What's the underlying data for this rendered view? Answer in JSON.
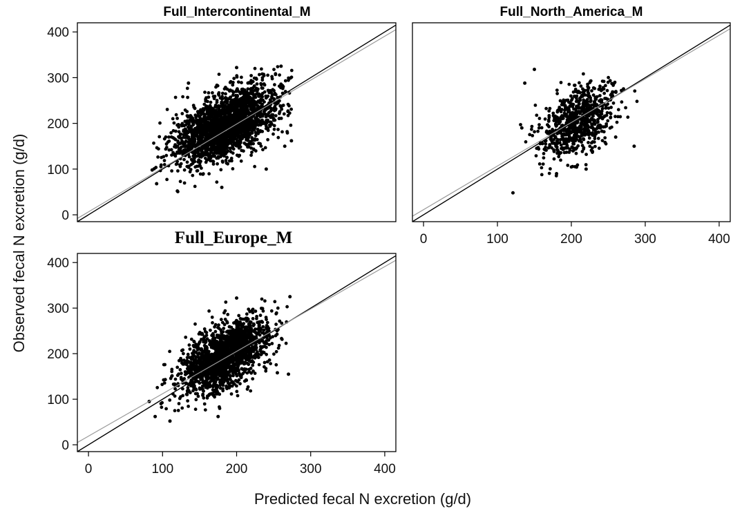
{
  "figure": {
    "ylabel": "Observed fecal N excretion (g/d)",
    "xlabel": "Predicted fecal N excretion (g/d)"
  },
  "chart_data": [
    {
      "type": "scatter",
      "title": "Full_Intercontinental_M",
      "xlim": [
        -15,
        415
      ],
      "ylim": [
        -15,
        420
      ],
      "xticks": [],
      "yticks": [
        0,
        100,
        200,
        300,
        400
      ],
      "cloud": {
        "n": 2200,
        "mean": [
          185,
          195
        ],
        "sd": [
          35,
          42
        ],
        "r": 0.55,
        "xrange": [
          85,
          275
        ],
        "yrange": [
          50,
          325
        ]
      },
      "series": [
        {
          "values": [
            [
              86,
              98
            ],
            [
              92,
              68
            ],
            [
              120,
              52
            ],
            [
              135,
              288
            ],
            [
              200,
              322
            ],
            [
              260,
              325
            ],
            [
              265,
              150
            ],
            [
              274,
              162
            ],
            [
              180,
              60
            ],
            [
              240,
              100
            ]
          ]
        },
        {
          "type": "line",
          "values": [
            [
              -15,
              -15
            ],
            [
              415,
              415
            ]
          ]
        },
        {
          "type": "line",
          "values": [
            [
              -15,
              -8
            ],
            [
              415,
              405
            ]
          ]
        }
      ]
    },
    {
      "type": "scatter",
      "title": "Full_North_America_M",
      "xlim": [
        -15,
        415
      ],
      "ylim": [
        -15,
        420
      ],
      "xticks": [
        0,
        100,
        200,
        300,
        400
      ],
      "yticks": [],
      "cloud": {
        "n": 800,
        "mean": [
          210,
          205
        ],
        "sd": [
          24,
          40
        ],
        "r": 0.5,
        "xrange": [
          130,
          290
        ],
        "yrange": [
          80,
          325
        ]
      },
      "series": [
        {
          "values": [
            [
              121,
              48
            ],
            [
              133,
              190
            ],
            [
              137,
              288
            ],
            [
              150,
              318
            ],
            [
              285,
              150
            ],
            [
              260,
              170
            ],
            [
              220,
              100
            ],
            [
              180,
              90
            ]
          ]
        },
        {
          "type": "line",
          "values": [
            [
              -15,
              -15
            ],
            [
              415,
              415
            ]
          ]
        },
        {
          "type": "line",
          "values": [
            [
              -15,
              -3
            ],
            [
              415,
              407
            ]
          ]
        }
      ]
    },
    {
      "type": "scatter",
      "title": "Full_Europe_M",
      "xlim": [
        -15,
        415
      ],
      "ylim": [
        -15,
        420
      ],
      "xticks": [
        0,
        100,
        200,
        300,
        400
      ],
      "yticks": [
        0,
        100,
        200,
        300,
        400
      ],
      "cloud": {
        "n": 1800,
        "mean": [
          185,
          195
        ],
        "sd": [
          30,
          42
        ],
        "r": 0.55,
        "xrange": [
          85,
          275
        ],
        "yrange": [
          50,
          325
        ]
      },
      "series": [
        {
          "values": [
            [
              82,
              95
            ],
            [
              90,
              62
            ],
            [
              110,
              52
            ],
            [
              175,
              62
            ],
            [
              200,
              322
            ],
            [
              272,
              325
            ],
            [
              270,
              155
            ],
            [
              255,
              158
            ]
          ]
        },
        {
          "type": "line",
          "values": [
            [
              -15,
              -15
            ],
            [
              415,
              415
            ]
          ]
        },
        {
          "type": "line",
          "values": [
            [
              -15,
              5
            ],
            [
              415,
              405
            ]
          ]
        }
      ]
    }
  ]
}
